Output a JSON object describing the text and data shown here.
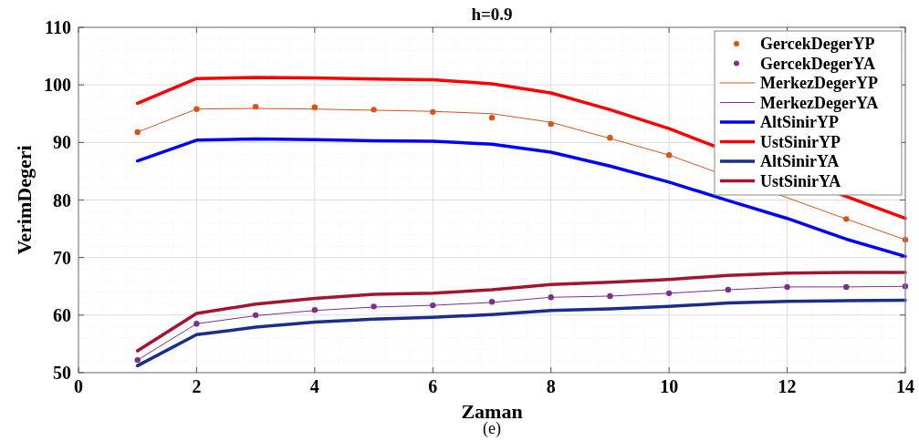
{
  "chart_data": {
    "type": "line",
    "title": "h=0.9",
    "xlabel": "Zaman",
    "ylabel": "VerimDegeri",
    "annotations": [
      "(e)"
    ],
    "x": [
      1,
      2,
      3,
      4,
      5,
      6,
      7,
      8,
      9,
      10,
      11,
      12,
      13,
      14
    ],
    "xlim": [
      0,
      14
    ],
    "xticks": [
      0,
      2,
      4,
      6,
      8,
      10,
      12,
      14
    ],
    "ylim": [
      50,
      110
    ],
    "yticks": [
      50,
      60,
      70,
      80,
      90,
      100,
      110
    ],
    "grid": true,
    "legend": "top right",
    "series": [
      {
        "name": "GercekDegerYP",
        "type": "scatter",
        "marker": "circle",
        "color": "#d95319",
        "values": [
          91.8,
          95.8,
          96.2,
          96.1,
          95.7,
          95.3,
          94.3,
          93.2,
          90.8,
          87.8,
          null,
          null,
          76.7,
          73.1
        ]
      },
      {
        "name": "GercekDegerYA",
        "type": "scatter",
        "marker": "circle",
        "color": "#7e2f8e",
        "values": [
          52.2,
          58.5,
          60.0,
          60.9,
          61.5,
          61.7,
          62.3,
          63.1,
          63.3,
          63.8,
          64.4,
          64.9,
          64.9,
          65.0
        ]
      },
      {
        "name": "MerkezDegerYP",
        "color": "#d95319",
        "values": [
          91.8,
          95.8,
          95.9,
          95.8,
          95.6,
          95.4,
          95.0,
          93.5,
          90.7,
          87.8,
          null,
          80.4,
          76.7,
          73.1
        ]
      },
      {
        "name": "MerkezDegerYA",
        "color": "#7e2f8e",
        "values": [
          52.2,
          58.5,
          59.9,
          60.8,
          61.4,
          61.7,
          62.2,
          63.1,
          63.3,
          63.8,
          64.4,
          64.9,
          64.9,
          65.0
        ]
      },
      {
        "name": "AltSinirYP",
        "color": "#0000ff",
        "values": [
          86.8,
          90.4,
          90.6,
          90.5,
          90.3,
          90.2,
          89.7,
          88.3,
          85.9,
          83.1,
          79.9,
          76.8,
          73.2,
          70.2
        ]
      },
      {
        "name": "UstSinirYP",
        "color": "#ff0000",
        "values": [
          96.8,
          101.1,
          101.3,
          101.2,
          101.0,
          100.9,
          100.2,
          98.6,
          95.7,
          92.4,
          null,
          null,
          80.6,
          76.8
        ]
      },
      {
        "name": "AltSinirYA",
        "color": "#1a2d8c",
        "values": [
          51.2,
          56.6,
          57.9,
          58.8,
          59.3,
          59.6,
          60.1,
          60.8,
          61.1,
          61.5,
          62.1,
          62.4,
          62.5,
          62.6
        ]
      },
      {
        "name": "UstSinirYA",
        "color": "#a2142f",
        "values": [
          53.8,
          60.3,
          61.9,
          62.9,
          63.6,
          63.8,
          64.4,
          65.3,
          65.7,
          66.2,
          66.9,
          67.3,
          67.4,
          67.4
        ]
      }
    ]
  }
}
